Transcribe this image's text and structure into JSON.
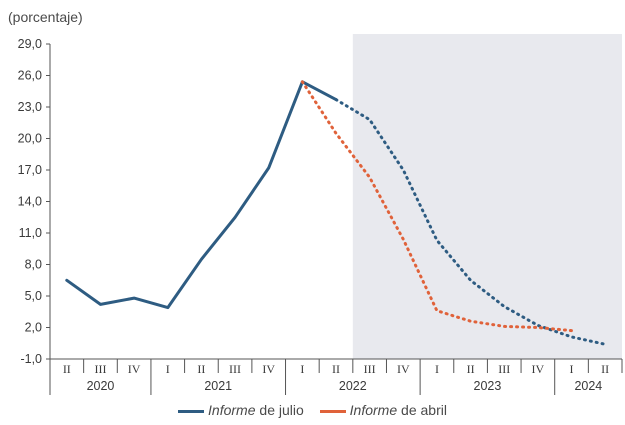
{
  "chart_data": {
    "type": "line",
    "ylabel": "(porcentaje)",
    "ylim": [
      -1.0,
      29.0
    ],
    "yticks": [
      "29,0",
      "26,0",
      "23,0",
      "20,0",
      "17,0",
      "14,0",
      "11,0",
      "8,0",
      "5,0",
      "2,0",
      "-1,0"
    ],
    "ytick_values": [
      29,
      26,
      23,
      20,
      17,
      14,
      11,
      8,
      5,
      2,
      -1
    ],
    "quarters": [
      "II",
      "III",
      "IV",
      "I",
      "II",
      "III",
      "IV",
      "I",
      "II",
      "III",
      "IV",
      "I",
      "II",
      "III",
      "IV",
      "I",
      "II"
    ],
    "years": [
      {
        "label": "2020",
        "from": 0,
        "to": 2
      },
      {
        "label": "2021",
        "from": 3,
        "to": 6
      },
      {
        "label": "2022",
        "from": 7,
        "to": 10
      },
      {
        "label": "2023",
        "from": 11,
        "to": 14
      },
      {
        "label": "2024",
        "from": 15,
        "to": 16
      }
    ],
    "projection_start_index": 8.5,
    "projection_shade_color": "#e8e9ee",
    "series": [
      {
        "name": "de julio",
        "name_prefix": "Informe",
        "color": "#2e5c82",
        "x": [
          0,
          1,
          2,
          3,
          4,
          5,
          6,
          7,
          8,
          9,
          10,
          11,
          12,
          13,
          14,
          15,
          16
        ],
        "y": [
          6.5,
          4.2,
          4.8,
          3.9,
          8.5,
          12.5,
          17.2,
          25.4,
          23.7,
          21.8,
          17.0,
          10.3,
          6.5,
          4.0,
          2.2,
          1.1,
          0.4
        ],
        "actual_until": 8
      },
      {
        "name": "de abril",
        "name_prefix": "Informe",
        "color": "#e0623a",
        "x": [
          7,
          8,
          9,
          10,
          11,
          12,
          13,
          14,
          15
        ],
        "y": [
          25.4,
          20.5,
          16.3,
          10.4,
          3.6,
          2.6,
          2.1,
          2.0,
          1.7
        ]
      }
    ]
  }
}
